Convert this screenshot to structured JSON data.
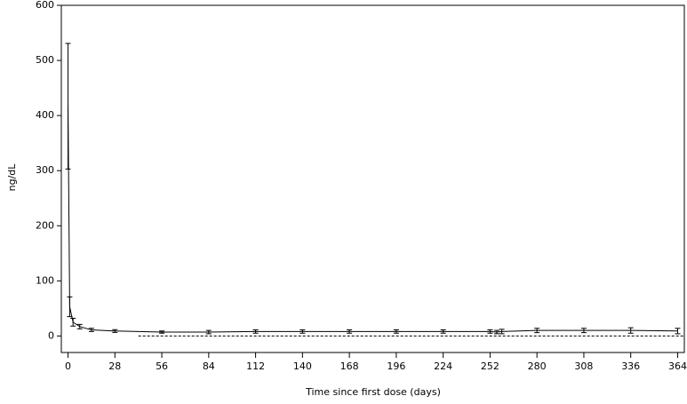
{
  "chart_data": {
    "type": "line",
    "x_label": "Time since first dose (days)",
    "y_label": "ng/dL",
    "x": [
      0,
      1,
      3,
      7,
      14,
      28,
      56,
      84,
      112,
      140,
      168,
      196,
      224,
      252,
      256,
      259,
      280,
      308,
      336,
      364
    ],
    "series": [
      {
        "color": "#000000",
        "values": [
          417,
          53,
          25,
          17,
          11,
          9,
          7,
          7,
          8,
          8,
          8,
          8,
          8,
          8,
          7,
          8,
          10,
          10,
          10,
          9
        ],
        "errors": [
          114,
          18,
          7,
          4,
          3,
          2.5,
          2,
          3,
          3,
          3,
          3,
          3,
          3,
          3,
          3,
          4,
          4,
          4,
          5,
          5
        ]
      }
    ],
    "reference_line": {
      "value": 0,
      "x": [
        42,
        368
      ]
    },
    "xlim": [
      -4,
      368
    ],
    "ylim": [
      -30,
      600
    ],
    "xticks": [
      0,
      28,
      56,
      84,
      112,
      140,
      168,
      196,
      224,
      252,
      280,
      308,
      336,
      364
    ],
    "yticks": [
      0,
      100,
      200,
      300,
      400,
      500,
      600
    ]
  }
}
